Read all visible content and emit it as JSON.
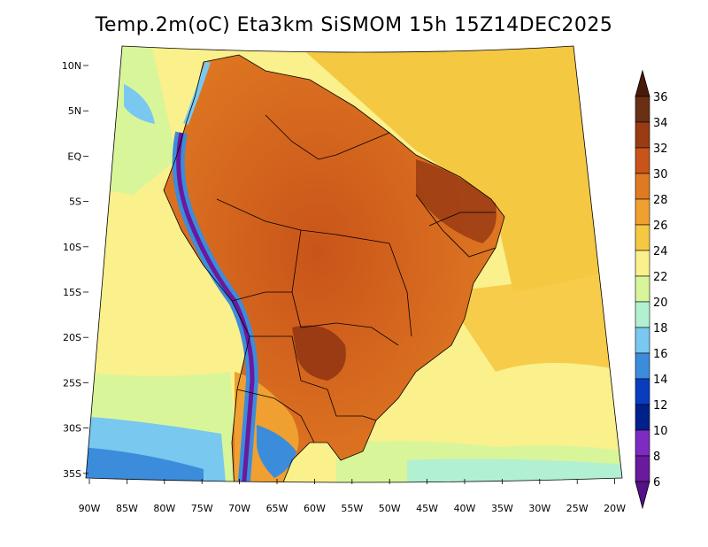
{
  "title": "Temp.2m(oC) Eta3km SiSMOM 15h 15Z14DEC2025",
  "map": {
    "lat_labels": [
      "10N",
      "5N",
      "EQ",
      "5S",
      "10S",
      "15S",
      "20S",
      "25S",
      "30S",
      "35S"
    ],
    "lon_labels": [
      "90W",
      "85W",
      "80W",
      "75W",
      "70W",
      "65W",
      "60W",
      "55W",
      "50W",
      "45W",
      "40W",
      "35W",
      "30W",
      "25W",
      "20W"
    ]
  },
  "colorbar": {
    "labels": [
      "36",
      "34",
      "32",
      "30",
      "28",
      "26",
      "24",
      "22",
      "20",
      "18",
      "16",
      "14",
      "12",
      "10",
      "8",
      "6"
    ],
    "colors": [
      "#6b2f14",
      "#9a3b14",
      "#c9541a",
      "#e07a22",
      "#f0a030",
      "#f5c842",
      "#faf08c",
      "#d8f59a",
      "#b2f0d2",
      "#78c8f0",
      "#3c8cdc",
      "#0a3cc0",
      "#00208c",
      "#7c2cc0",
      "#6a1a9c"
    ],
    "top_color": "#4a1a08",
    "bottom_color": "#55108a"
  },
  "colors": {
    "ocean_warm": "#f5c842",
    "ocean_mild": "#faf08c",
    "ocean_cool": "#d8f59a",
    "land_hot": "#e07a22",
    "land_very_hot": "#c9541a",
    "andes": "#3c8cdc"
  }
}
